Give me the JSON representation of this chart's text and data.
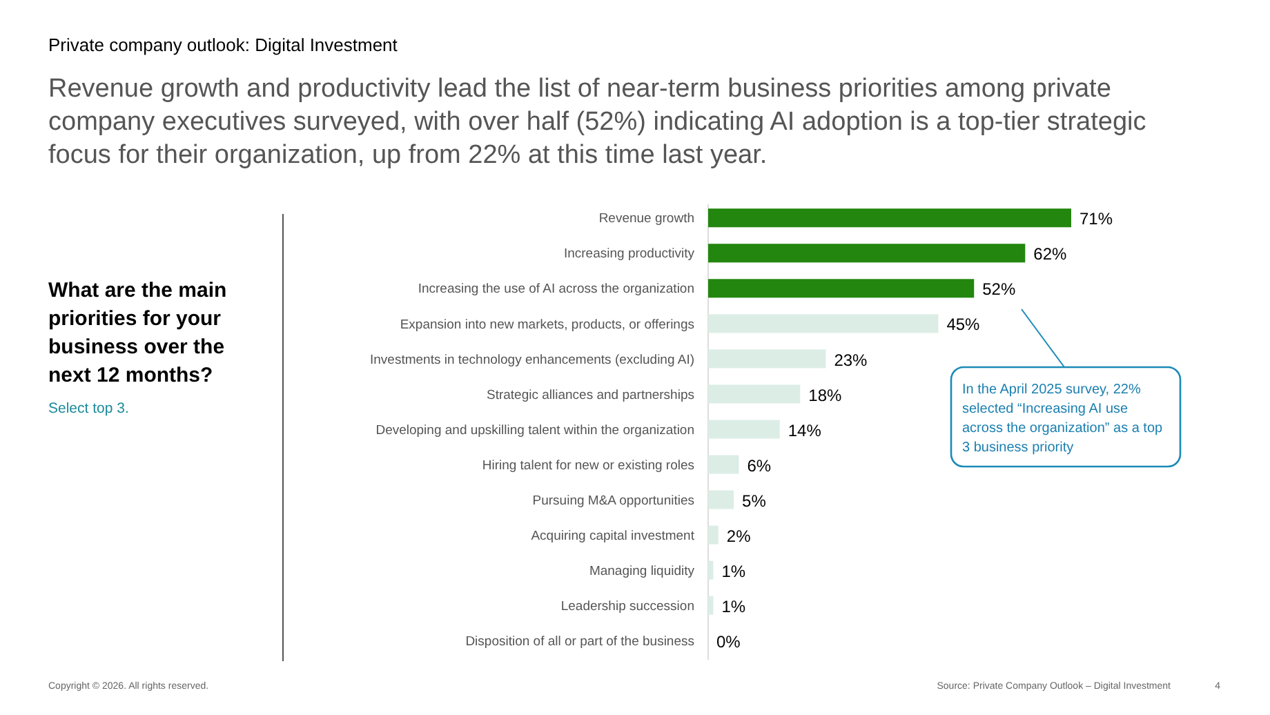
{
  "chart_data": {
    "type": "bar",
    "orientation": "horizontal",
    "title": "Private company outlook: Digital Investment",
    "subtitle": "Revenue growth and productivity lead the list of near-term business priorities among private company executives surveyed, with over half (52%) indicating AI adoption is a top-tier strategic focus for their organization, up from 22% at this time last year.",
    "categories": [
      "Revenue growth",
      "Increasing productivity",
      "Increasing the use of AI across the organization",
      "Expansion into new markets, products, or offerings",
      "Investments in technology enhancements (excluding AI)",
      "Strategic alliances and partnerships",
      "Developing and upskilling talent within the organization",
      "Hiring talent for new or existing roles",
      "Pursuing M&A opportunities",
      "Acquiring capital investment",
      "Managing liquidity",
      "Leadership succession",
      "Disposition of all or part of the business"
    ],
    "values": [
      71,
      62,
      52,
      45,
      23,
      18,
      14,
      6,
      5,
      2,
      1,
      1,
      0
    ],
    "colors": [
      "#23860e",
      "#23860e",
      "#23860e",
      "#dcede6",
      "#dcede6",
      "#dcede6",
      "#dcede6",
      "#dcede6",
      "#dcede6",
      "#dcede6",
      "#dcede6",
      "#dcede6",
      "#dcede6"
    ],
    "value_labels": [
      "71%",
      "62%",
      "52%",
      "45%",
      "23%",
      "18%",
      "14%",
      "6%",
      "5%",
      "2%",
      "1%",
      "1%",
      "0%"
    ],
    "annotations": [
      "What are the main priorities for your business over the next 12 months?",
      "Select top 3.",
      "In the April 2025 survey, 22% selected “Increasing AI use across the organization” as a top 3 business priority",
      "Copyright © 2026. All rights reserved.",
      "Source: Private Company Outlook – Digital Investment",
      "4"
    ]
  }
}
